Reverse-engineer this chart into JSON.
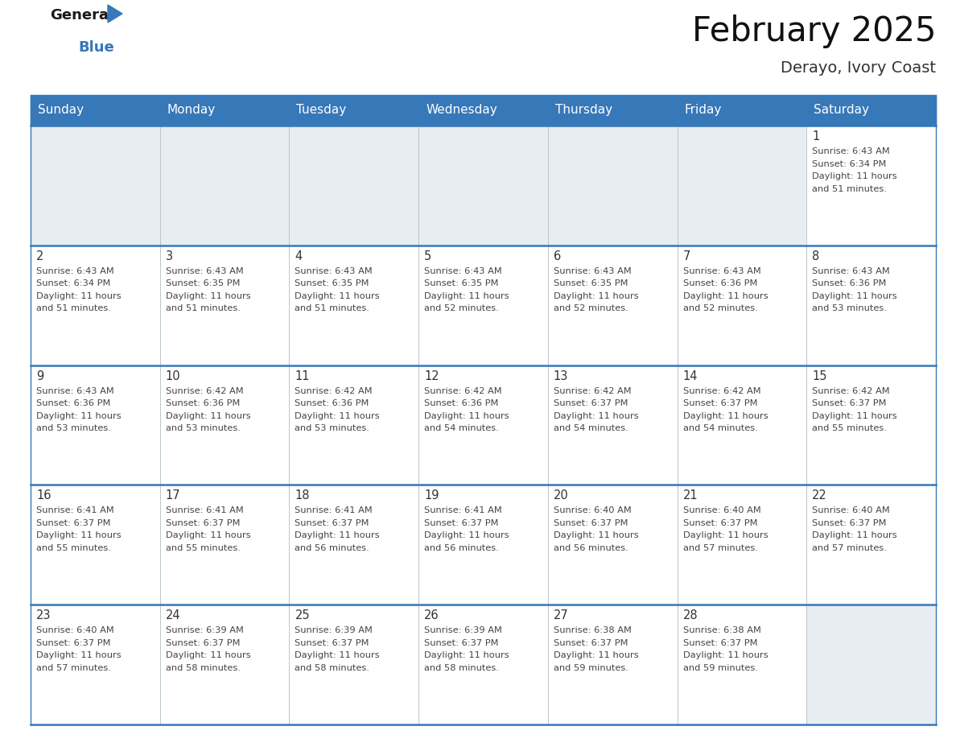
{
  "title": "February 2025",
  "subtitle": "Derayo, Ivory Coast",
  "header_bg_color": "#3778b8",
  "header_text_color": "#ffffff",
  "border_color": "#3778b8",
  "text_color": "#444444",
  "empty_cell_bg": "#e8edf2",
  "filled_cell_bg": "#ffffff",
  "days_of_week": [
    "Sunday",
    "Monday",
    "Tuesday",
    "Wednesday",
    "Thursday",
    "Friday",
    "Saturday"
  ],
  "calendar_data": [
    [
      null,
      null,
      null,
      null,
      null,
      null,
      {
        "day": 1,
        "sunrise": "6:43 AM",
        "sunset": "6:34 PM",
        "daylight": "11 hours and 51 minutes."
      }
    ],
    [
      {
        "day": 2,
        "sunrise": "6:43 AM",
        "sunset": "6:34 PM",
        "daylight": "11 hours and 51 minutes."
      },
      {
        "day": 3,
        "sunrise": "6:43 AM",
        "sunset": "6:35 PM",
        "daylight": "11 hours and 51 minutes."
      },
      {
        "day": 4,
        "sunrise": "6:43 AM",
        "sunset": "6:35 PM",
        "daylight": "11 hours and 51 minutes."
      },
      {
        "day": 5,
        "sunrise": "6:43 AM",
        "sunset": "6:35 PM",
        "daylight": "11 hours and 52 minutes."
      },
      {
        "day": 6,
        "sunrise": "6:43 AM",
        "sunset": "6:35 PM",
        "daylight": "11 hours and 52 minutes."
      },
      {
        "day": 7,
        "sunrise": "6:43 AM",
        "sunset": "6:36 PM",
        "daylight": "11 hours and 52 minutes."
      },
      {
        "day": 8,
        "sunrise": "6:43 AM",
        "sunset": "6:36 PM",
        "daylight": "11 hours and 53 minutes."
      }
    ],
    [
      {
        "day": 9,
        "sunrise": "6:43 AM",
        "sunset": "6:36 PM",
        "daylight": "11 hours and 53 minutes."
      },
      {
        "day": 10,
        "sunrise": "6:42 AM",
        "sunset": "6:36 PM",
        "daylight": "11 hours and 53 minutes."
      },
      {
        "day": 11,
        "sunrise": "6:42 AM",
        "sunset": "6:36 PM",
        "daylight": "11 hours and 53 minutes."
      },
      {
        "day": 12,
        "sunrise": "6:42 AM",
        "sunset": "6:36 PM",
        "daylight": "11 hours and 54 minutes."
      },
      {
        "day": 13,
        "sunrise": "6:42 AM",
        "sunset": "6:37 PM",
        "daylight": "11 hours and 54 minutes."
      },
      {
        "day": 14,
        "sunrise": "6:42 AM",
        "sunset": "6:37 PM",
        "daylight": "11 hours and 54 minutes."
      },
      {
        "day": 15,
        "sunrise": "6:42 AM",
        "sunset": "6:37 PM",
        "daylight": "11 hours and 55 minutes."
      }
    ],
    [
      {
        "day": 16,
        "sunrise": "6:41 AM",
        "sunset": "6:37 PM",
        "daylight": "11 hours and 55 minutes."
      },
      {
        "day": 17,
        "sunrise": "6:41 AM",
        "sunset": "6:37 PM",
        "daylight": "11 hours and 55 minutes."
      },
      {
        "day": 18,
        "sunrise": "6:41 AM",
        "sunset": "6:37 PM",
        "daylight": "11 hours and 56 minutes."
      },
      {
        "day": 19,
        "sunrise": "6:41 AM",
        "sunset": "6:37 PM",
        "daylight": "11 hours and 56 minutes."
      },
      {
        "day": 20,
        "sunrise": "6:40 AM",
        "sunset": "6:37 PM",
        "daylight": "11 hours and 56 minutes."
      },
      {
        "day": 21,
        "sunrise": "6:40 AM",
        "sunset": "6:37 PM",
        "daylight": "11 hours and 57 minutes."
      },
      {
        "day": 22,
        "sunrise": "6:40 AM",
        "sunset": "6:37 PM",
        "daylight": "11 hours and 57 minutes."
      }
    ],
    [
      {
        "day": 23,
        "sunrise": "6:40 AM",
        "sunset": "6:37 PM",
        "daylight": "11 hours and 57 minutes."
      },
      {
        "day": 24,
        "sunrise": "6:39 AM",
        "sunset": "6:37 PM",
        "daylight": "11 hours and 58 minutes."
      },
      {
        "day": 25,
        "sunrise": "6:39 AM",
        "sunset": "6:37 PM",
        "daylight": "11 hours and 58 minutes."
      },
      {
        "day": 26,
        "sunrise": "6:39 AM",
        "sunset": "6:37 PM",
        "daylight": "11 hours and 58 minutes."
      },
      {
        "day": 27,
        "sunrise": "6:38 AM",
        "sunset": "6:37 PM",
        "daylight": "11 hours and 59 minutes."
      },
      {
        "day": 28,
        "sunrise": "6:38 AM",
        "sunset": "6:37 PM",
        "daylight": "11 hours and 59 minutes."
      },
      null
    ]
  ],
  "figsize": [
    11.88,
    9.18
  ],
  "dpi": 100
}
